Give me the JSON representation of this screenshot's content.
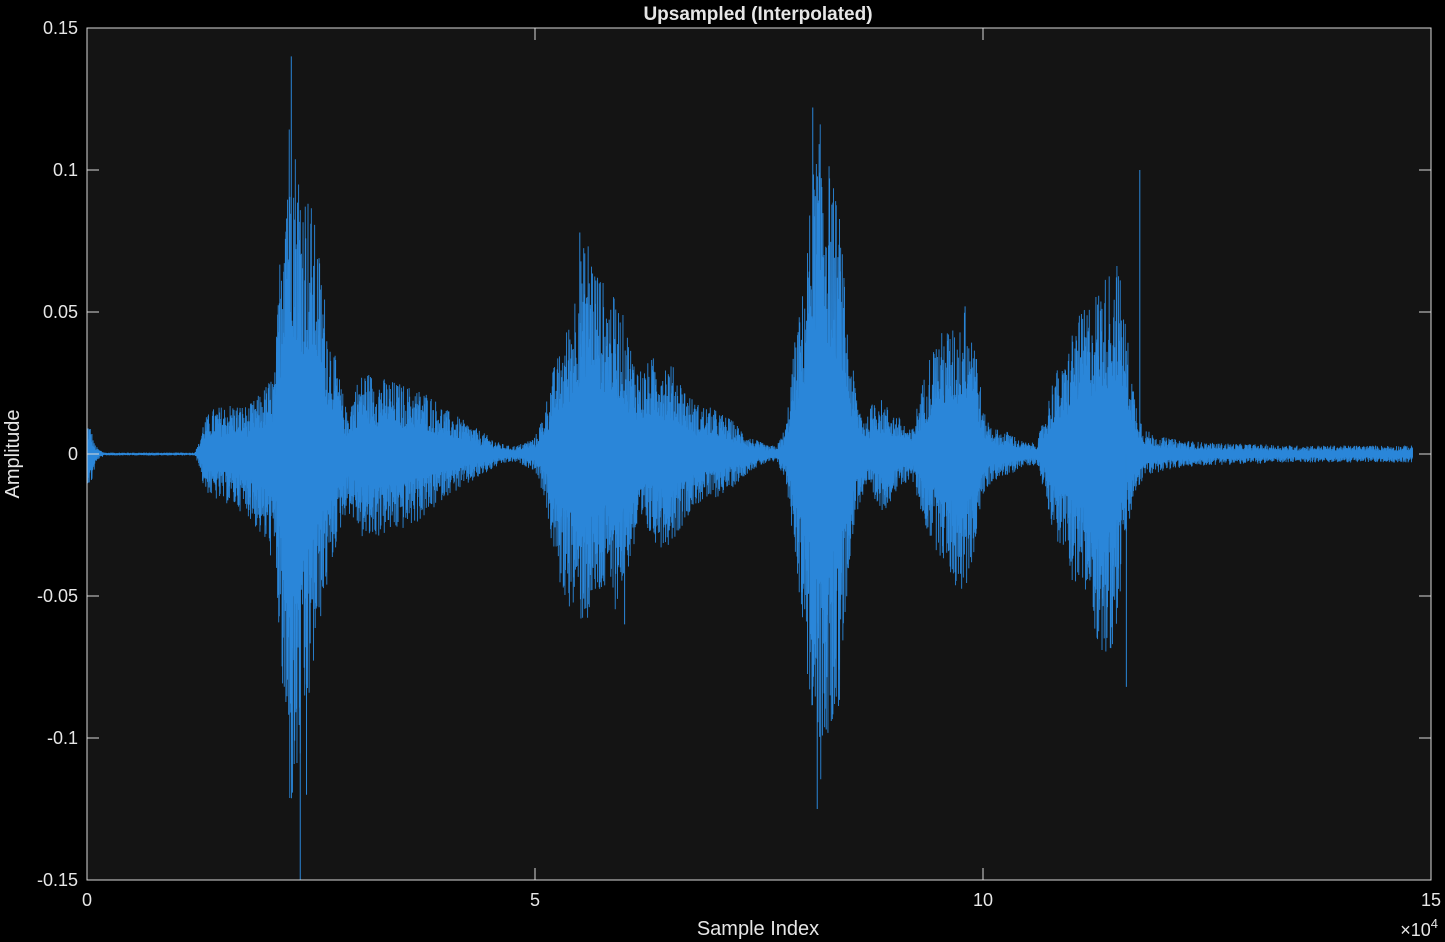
{
  "chart_data": {
    "type": "line",
    "title": "Upsampled (Interpolated)",
    "xlabel": "Sample Index",
    "ylabel": "Amplitude",
    "x_exponent_label": "×10",
    "x_exponent_power": "4",
    "xlim": [
      0,
      150000
    ],
    "ylim": [
      -0.15,
      0.15
    ],
    "x_ticks": [
      0,
      50000,
      100000,
      150000
    ],
    "x_tick_labels": [
      "0",
      "5",
      "10",
      "15"
    ],
    "y_ticks": [
      -0.15,
      -0.1,
      -0.05,
      0,
      0.05,
      0.1,
      0.15
    ],
    "y_tick_labels": [
      "-0.15",
      "-0.1",
      "-0.05",
      "0",
      "0.05",
      "0.1",
      "0.15"
    ],
    "grid": false,
    "colors": {
      "background": "#000000",
      "plot_area": "#141414",
      "axes": "#d9d9d9",
      "text": "#e6e6e6",
      "series": "#2a86d9"
    },
    "series": [
      {
        "name": "",
        "envelope": {
          "x": [
            0,
            400,
            800,
            1200,
            2000,
            12000,
            12500,
            13000,
            14000,
            16000,
            18000,
            19500,
            21000,
            22000,
            22500,
            23000,
            24000,
            25000,
            26000,
            27000,
            28000,
            29000,
            30000,
            31000,
            32000,
            34000,
            36000,
            38000,
            40000,
            42000,
            44000,
            46000,
            47000,
            48000,
            50000,
            51000,
            52000,
            53000,
            54000,
            55000,
            56000,
            57000,
            58000,
            59000,
            60000,
            61000,
            62000,
            63000,
            64000,
            65000,
            66000,
            67000,
            68000,
            70000,
            72000,
            74000,
            76000,
            77000,
            78000,
            79000,
            80000,
            81000,
            82000,
            83000,
            84000,
            85000,
            86000,
            87000,
            88000,
            89000,
            90000,
            91000,
            92000,
            93000,
            94000,
            95000,
            96000,
            97000,
            98000,
            99000,
            100000,
            101000,
            102000,
            103000,
            104000,
            105000,
            106000,
            107000,
            108000,
            109000,
            110000,
            111000,
            112000,
            113000,
            114000,
            115000,
            116000,
            117000,
            118000,
            119000,
            120000,
            122000,
            125000,
            130000,
            135000,
            140000,
            145000,
            148000
          ],
          "upper": [
            0.012,
            0.01,
            0.004,
            0.002,
            0.0005,
            0.0005,
            0.004,
            0.012,
            0.016,
            0.018,
            0.017,
            0.022,
            0.03,
            0.11,
            0.125,
            0.115,
            0.1,
            0.09,
            0.07,
            0.045,
            0.03,
            0.015,
            0.025,
            0.03,
            0.028,
            0.026,
            0.024,
            0.022,
            0.016,
            0.012,
            0.008,
            0.004,
            0.003,
            0.003,
            0.006,
            0.015,
            0.03,
            0.038,
            0.05,
            0.07,
            0.078,
            0.066,
            0.058,
            0.055,
            0.048,
            0.035,
            0.03,
            0.034,
            0.035,
            0.033,
            0.028,
            0.022,
            0.018,
            0.016,
            0.012,
            0.006,
            0.003,
            0.003,
            0.01,
            0.04,
            0.06,
            0.1,
            0.12,
            0.1,
            0.085,
            0.04,
            0.02,
            0.012,
            0.022,
            0.018,
            0.015,
            0.012,
            0.008,
            0.022,
            0.035,
            0.042,
            0.045,
            0.044,
            0.052,
            0.048,
            0.015,
            0.01,
            0.008,
            0.008,
            0.005,
            0.004,
            0.004,
            0.015,
            0.03,
            0.03,
            0.045,
            0.05,
            0.055,
            0.06,
            0.065,
            0.07,
            0.045,
            0.02,
            0.009,
            0.007,
            0.006,
            0.005,
            0.004,
            0.0035,
            0.003,
            0.003,
            0.003,
            0.003
          ],
          "lower": [
            -0.01,
            -0.012,
            -0.006,
            -0.002,
            -0.0005,
            -0.0005,
            -0.004,
            -0.012,
            -0.016,
            -0.018,
            -0.022,
            -0.03,
            -0.04,
            -0.1,
            -0.125,
            -0.13,
            -0.11,
            -0.085,
            -0.06,
            -0.045,
            -0.03,
            -0.02,
            -0.025,
            -0.032,
            -0.03,
            -0.028,
            -0.026,
            -0.022,
            -0.015,
            -0.012,
            -0.008,
            -0.004,
            -0.003,
            -0.003,
            -0.006,
            -0.015,
            -0.035,
            -0.05,
            -0.055,
            -0.06,
            -0.06,
            -0.052,
            -0.05,
            -0.055,
            -0.045,
            -0.035,
            -0.028,
            -0.03,
            -0.033,
            -0.032,
            -0.028,
            -0.022,
            -0.018,
            -0.016,
            -0.012,
            -0.006,
            -0.003,
            -0.003,
            -0.01,
            -0.035,
            -0.065,
            -0.1,
            -0.12,
            -0.1,
            -0.09,
            -0.04,
            -0.02,
            -0.012,
            -0.02,
            -0.02,
            -0.015,
            -0.012,
            -0.008,
            -0.02,
            -0.03,
            -0.035,
            -0.04,
            -0.048,
            -0.05,
            -0.035,
            -0.015,
            -0.01,
            -0.008,
            -0.008,
            -0.005,
            -0.004,
            -0.004,
            -0.015,
            -0.03,
            -0.035,
            -0.045,
            -0.05,
            -0.055,
            -0.07,
            -0.075,
            -0.06,
            -0.03,
            -0.015,
            -0.008,
            -0.007,
            -0.006,
            -0.005,
            -0.004,
            -0.0035,
            -0.003,
            -0.003,
            -0.003,
            -0.003
          ]
        },
        "peaks": [
          {
            "x": 22800,
            "y": 0.14
          },
          {
            "x": 23800,
            "y": -0.15
          },
          {
            "x": 24500,
            "y": -0.12
          },
          {
            "x": 55000,
            "y": 0.078
          },
          {
            "x": 60000,
            "y": -0.06
          },
          {
            "x": 81000,
            "y": 0.122
          },
          {
            "x": 81500,
            "y": -0.125
          },
          {
            "x": 82500,
            "y": -0.097
          },
          {
            "x": 98000,
            "y": 0.052
          },
          {
            "x": 117500,
            "y": 0.1
          },
          {
            "x": 116000,
            "y": -0.082
          }
        ]
      }
    ]
  }
}
